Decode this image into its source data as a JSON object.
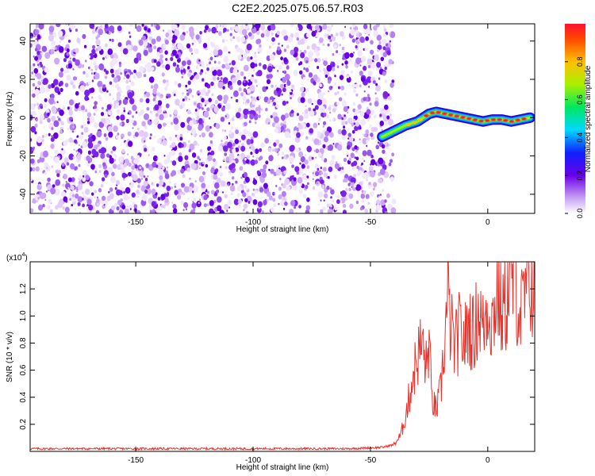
{
  "title": "C2E2.2025.075.06.57.R03",
  "chart_data": [
    {
      "type": "heatmap",
      "xlabel": "Height of straight line (km)",
      "ylabel": "Frequency (Hz)",
      "xlim": [
        -195,
        20
      ],
      "ylim": [
        -50,
        49
      ],
      "x_ticks": [
        -150,
        -100,
        -50,
        0
      ],
      "y_ticks": [
        -40,
        -20,
        0,
        20,
        40
      ],
      "noise_region_x": [
        -195,
        -42
      ],
      "ridge": {
        "x": [
          -45,
          -40,
          -35,
          -30,
          -25,
          -22,
          -18,
          -14,
          -10,
          -6,
          -2,
          2,
          6,
          10,
          14,
          18
        ],
        "y": [
          -10,
          -7,
          -4,
          -2,
          2,
          3,
          2,
          1,
          0,
          -1,
          -2,
          -1,
          -1,
          -2,
          -1,
          0
        ]
      },
      "colorbar": {
        "label": "Normalized spectral amplitude",
        "range": [
          0,
          1
        ],
        "ticks": [
          "0.0",
          "0.2",
          "0.4",
          "0.6",
          "0.8"
        ]
      }
    },
    {
      "type": "line",
      "xlabel": "Height of straight line (km)",
      "ylabel": "SNR (10 * v/v)",
      "scale_note": "(x10^4)",
      "xlim": [
        -195,
        20
      ],
      "ylim": [
        0,
        1.4
      ],
      "x_ticks": [
        -150,
        -100,
        -50,
        0
      ],
      "y_ticks": [
        "0.2",
        "0.4",
        "0.6",
        "0.8",
        "1.0",
        "1.2"
      ],
      "color": "#e8332c",
      "x": [
        -195,
        -60,
        -45,
        -40,
        -37,
        -34,
        -32,
        -30,
        -28,
        -26,
        -25,
        -24,
        -22,
        -20,
        -18,
        -17,
        -16,
        -14,
        -12,
        -10,
        -8,
        -6,
        -4,
        -2,
        0,
        2,
        4,
        6,
        8,
        10,
        12,
        14,
        16,
        18,
        20
      ],
      "y": [
        0.02,
        0.02,
        0.03,
        0.05,
        0.12,
        0.35,
        0.55,
        0.7,
        0.8,
        0.6,
        0.85,
        0.4,
        0.3,
        0.45,
        0.9,
        1.12,
        0.95,
        0.75,
        0.9,
        0.8,
        0.95,
        0.85,
        1.05,
        0.9,
        1.1,
        0.95,
        1.2,
        1.0,
        1.1,
        1.3,
        1.22,
        1.0,
        1.15,
        1.25,
        1.2
      ]
    }
  ]
}
